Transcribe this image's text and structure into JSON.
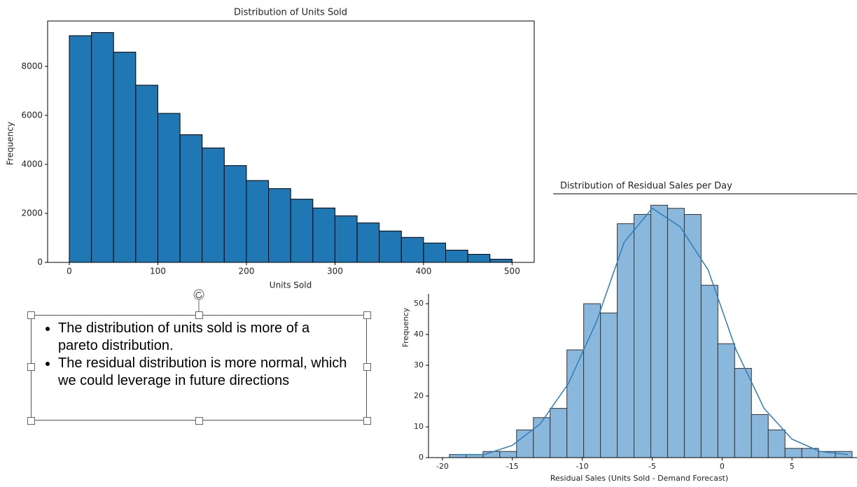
{
  "chart_data": [
    {
      "type": "histogram",
      "title": "Distribution of Units Sold",
      "x_label": "Units Sold",
      "y_label": "Frequency",
      "bins": [
        0,
        25,
        50,
        75,
        100,
        125,
        150,
        175,
        200,
        225,
        250,
        275,
        300,
        325,
        350,
        375,
        400,
        425,
        450,
        475,
        500
      ],
      "values": [
        9250,
        9380,
        8580,
        7230,
        6080,
        5210,
        4670,
        3950,
        3340,
        3010,
        2580,
        2220,
        1900,
        1610,
        1280,
        1020,
        790,
        500,
        330,
        130
      ],
      "color": "#1f77b4",
      "edgecolor": "#000000",
      "xlim": [
        -24.5,
        525
      ],
      "xticks": [
        0,
        100,
        200,
        300,
        400,
        500
      ],
      "ylim": [
        0,
        9850
      ],
      "yticks": [
        0,
        2000,
        4000,
        6000,
        8000
      ]
    },
    {
      "type": "histogram",
      "title": "Distribution of Residual Sales per Day",
      "x_label": "Residual Sales (Units Sold - Demand Forecast)",
      "y_label": "Frequency",
      "bins": [
        -19.5,
        -18.3,
        -17.1,
        -15.9,
        -14.7,
        -13.5,
        -12.3,
        -11.1,
        -9.9,
        -8.7,
        -7.5,
        -6.3,
        -5.1,
        -3.9,
        -2.7,
        -1.5,
        -0.3,
        0.9,
        2.1,
        3.3,
        4.5,
        5.7,
        6.9,
        8.1,
        9.3
      ],
      "values": [
        1,
        1,
        2,
        2,
        9,
        13,
        16,
        35,
        50,
        47,
        76,
        79,
        82,
        81,
        79,
        56,
        37,
        29,
        14,
        9,
        3,
        3,
        2,
        2
      ],
      "color": "#8ab8dc",
      "edgecolor": "#333333",
      "kde": {
        "x": [
          -19,
          -17,
          -15,
          -13,
          -11,
          -9,
          -7,
          -5,
          -3,
          -1,
          1,
          3,
          5,
          7,
          9
        ],
        "values": [
          1,
          1,
          4,
          11,
          24,
          44,
          70,
          81,
          75,
          61,
          35,
          16,
          6,
          2,
          1
        ],
        "color": "#2f7dbb"
      },
      "xlim": [
        -21,
        9.65
      ],
      "xticks": [
        -20,
        -15,
        -10,
        -5,
        0,
        5
      ],
      "ylim": [
        0,
        85.7
      ],
      "yticks": [
        0,
        10,
        20,
        30,
        40,
        50
      ]
    }
  ],
  "text_box": {
    "bullets": [
      "The distribution of units sold is more of a pareto distribution.",
      "The residual distribution is more normal, which we could leverage in future directions"
    ]
  }
}
